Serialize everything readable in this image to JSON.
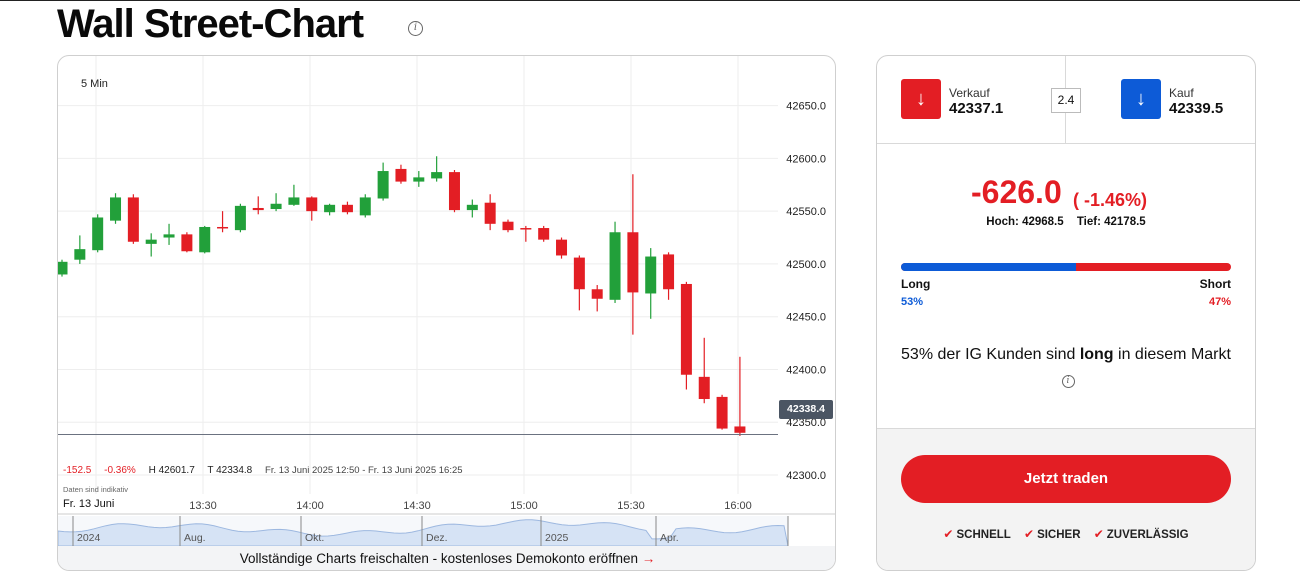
{
  "page": {
    "title": "Wall Street-Chart"
  },
  "chart": {
    "timeframe": "5 Min",
    "stats": {
      "change": "-152.5",
      "change_pct": "-0.36%",
      "high": "H 42601.7",
      "last": "T 42334.8",
      "range": "Fr. 13 Juni 2025 12:50 - Fr. 13 Juni 2025 16:25"
    },
    "indicative_note": "Daten sind indikativ",
    "date_label": "Fr. 13 Juni",
    "current_price": "42338.4",
    "cta": "Vollständige Charts freischalten - kostenloses Demokonto eröffnen",
    "navigator_labels": [
      "2024",
      "Aug.",
      "Okt.",
      "Dez.",
      "2025",
      "Apr."
    ]
  },
  "chart_data": {
    "type": "candlestick",
    "y_ticks": [
      "42650.0",
      "42600.0",
      "42550.0",
      "42500.0",
      "42450.0",
      "42400.0",
      "42350.0",
      "42300.0"
    ],
    "ylim": [
      42282,
      42697
    ],
    "x_ticks": [
      "13:30",
      "14:00",
      "14:30",
      "15:00",
      "15:30",
      "16:00"
    ],
    "candles": [
      {
        "o": 42490,
        "c": 42502,
        "h": 42504,
        "l": 42488
      },
      {
        "o": 42504,
        "c": 42514,
        "h": 42527,
        "l": 42500
      },
      {
        "o": 42513,
        "c": 42544,
        "h": 42547,
        "l": 42511
      },
      {
        "o": 42541,
        "c": 42563,
        "h": 42567,
        "l": 42538
      },
      {
        "o": 42563,
        "c": 42521,
        "h": 42566,
        "l": 42519
      },
      {
        "o": 42519,
        "c": 42523,
        "h": 42529,
        "l": 42507
      },
      {
        "o": 42525,
        "c": 42528,
        "h": 42538,
        "l": 42518
      },
      {
        "o": 42528,
        "c": 42512,
        "h": 42530,
        "l": 42511
      },
      {
        "o": 42511,
        "c": 42535,
        "h": 42536,
        "l": 42510
      },
      {
        "o": 42535,
        "c": 42534,
        "h": 42550,
        "l": 42530
      },
      {
        "o": 42532,
        "c": 42555,
        "h": 42557,
        "l": 42530
      },
      {
        "o": 42553,
        "c": 42551,
        "h": 42564,
        "l": 42547
      },
      {
        "o": 42552,
        "c": 42557,
        "h": 42567,
        "l": 42550
      },
      {
        "o": 42556,
        "c": 42563,
        "h": 42575,
        "l": 42555
      },
      {
        "o": 42563,
        "c": 42550,
        "h": 42564,
        "l": 42541
      },
      {
        "o": 42549,
        "c": 42556,
        "h": 42557,
        "l": 42546
      },
      {
        "o": 42556,
        "c": 42549,
        "h": 42559,
        "l": 42547
      },
      {
        "o": 42546,
        "c": 42563,
        "h": 42566,
        "l": 42544
      },
      {
        "o": 42562,
        "c": 42588,
        "h": 42596,
        "l": 42560
      },
      {
        "o": 42590,
        "c": 42578,
        "h": 42594,
        "l": 42576
      },
      {
        "o": 42578,
        "c": 42582,
        "h": 42588,
        "l": 42573
      },
      {
        "o": 42581,
        "c": 42587,
        "h": 42602,
        "l": 42578
      },
      {
        "o": 42587,
        "c": 42551,
        "h": 42589,
        "l": 42549
      },
      {
        "o": 42551,
        "c": 42556,
        "h": 42561,
        "l": 42544
      },
      {
        "o": 42558,
        "c": 42538,
        "h": 42566,
        "l": 42532
      },
      {
        "o": 42540,
        "c": 42532,
        "h": 42542,
        "l": 42530
      },
      {
        "o": 42534,
        "c": 42533,
        "h": 42536,
        "l": 42521
      },
      {
        "o": 42534,
        "c": 42523,
        "h": 42536,
        "l": 42521
      },
      {
        "o": 42523,
        "c": 42508,
        "h": 42525,
        "l": 42505
      },
      {
        "o": 42506,
        "c": 42476,
        "h": 42508,
        "l": 42456
      },
      {
        "o": 42476,
        "c": 42467,
        "h": 42480,
        "l": 42455
      },
      {
        "o": 42466,
        "c": 42530,
        "h": 42540,
        "l": 42463
      },
      {
        "o": 42530,
        "c": 42473,
        "h": 42585,
        "l": 42433
      },
      {
        "o": 42472,
        "c": 42507,
        "h": 42515,
        "l": 42448
      },
      {
        "o": 42509,
        "c": 42476,
        "h": 42511,
        "l": 42466
      },
      {
        "o": 42481,
        "c": 42395,
        "h": 42483,
        "l": 42381
      },
      {
        "o": 42393,
        "c": 42372,
        "h": 42430,
        "l": 42368
      },
      {
        "o": 42374,
        "c": 42344,
        "h": 42376,
        "l": 42343
      },
      {
        "o": 42346,
        "c": 42340,
        "h": 42412,
        "l": 42337
      }
    ]
  },
  "trade": {
    "sell_label": "Verkauf",
    "sell_price": "42337.1",
    "spread": "2.4",
    "buy_label": "Kauf",
    "buy_price": "42339.5",
    "change": "-626.0",
    "change_pct": "( -1.46%)",
    "high": "Hoch: 42968.5",
    "low": "Tief: 42178.5",
    "long_label": "Long",
    "short_label": "Short",
    "long_pct": "53%",
    "short_pct": "47%",
    "long_fraction": 0.53,
    "sentiment_pre": "53% der IG Kunden sind ",
    "sentiment_bold": "long",
    "sentiment_post": " in diesem Markt",
    "cta": "Jetzt traden",
    "features": [
      "SCHNELL",
      "SICHER",
      "ZUVERLÄSSIG"
    ]
  },
  "colors": {
    "accent_red": "#e31e24",
    "accent_blue": "#0d5bd7",
    "up": "#22a03a",
    "down": "#e31e24"
  }
}
